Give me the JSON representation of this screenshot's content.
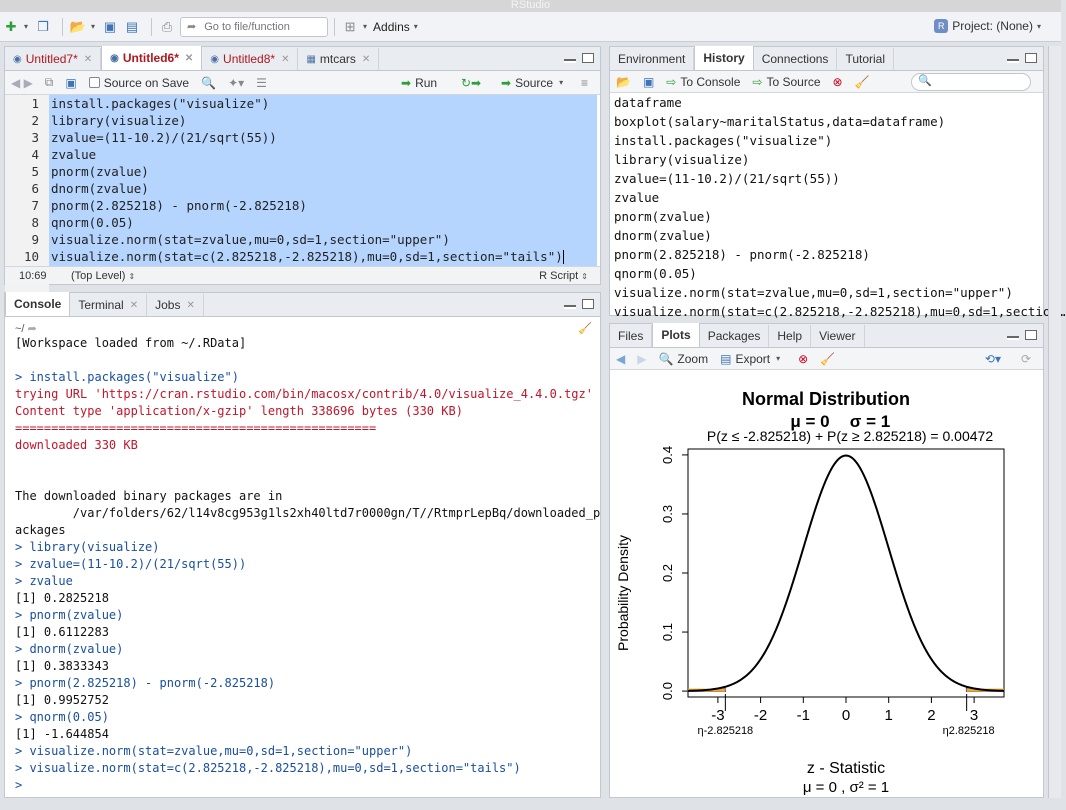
{
  "window": {
    "title": "RStudio"
  },
  "toolbar": {
    "goto_placeholder": "Go to file/function",
    "addins_label": "Addins",
    "project_label": "Project: (None)"
  },
  "source": {
    "tabs": [
      {
        "label": "Untitled7*",
        "active": false,
        "unsaved": true
      },
      {
        "label": "Untitled6*",
        "active": true,
        "unsaved": true
      },
      {
        "label": "Untitled8*",
        "active": false,
        "unsaved": true
      },
      {
        "label": "mtcars",
        "active": false,
        "unsaved": false
      }
    ],
    "source_on_save_label": "Source on Save",
    "run_label": "Run",
    "source_label": "Source",
    "lines": [
      "install.packages(\"visualize\")",
      "library(visualize)",
      "zvalue=(11-10.2)/(21/sqrt(55))",
      "zvalue",
      "pnorm(zvalue)",
      "dnorm(zvalue)",
      "pnorm(2.825218) - pnorm(-2.825218)",
      "qnorm(0.05)",
      "visualize.norm(stat=zvalue,mu=0,sd=1,section=\"upper\")",
      "visualize.norm(stat=c(2.825218,-2.825218),mu=0,sd=1,section=\"tails\")"
    ],
    "status_position": "10:69",
    "status_scope": "(Top Level)",
    "status_type": "R Script"
  },
  "console": {
    "tabs": [
      "Console",
      "Terminal",
      "Jobs"
    ],
    "path": "~/",
    "lines": [
      {
        "kind": "out",
        "text": "[Workspace loaded from ~/.RData]"
      },
      {
        "kind": "out",
        "text": ""
      },
      {
        "kind": "cmd",
        "text": "> install.packages(\"visualize\")"
      },
      {
        "kind": "err",
        "text": "trying URL 'https://cran.rstudio.com/bin/macosx/contrib/4.0/visualize_4.4.0.tgz'"
      },
      {
        "kind": "err",
        "text": "Content type 'application/x-gzip' length 338696 bytes (330 KB)"
      },
      {
        "kind": "err",
        "text": "=================================================="
      },
      {
        "kind": "err",
        "text": "downloaded 330 KB"
      },
      {
        "kind": "out",
        "text": ""
      },
      {
        "kind": "out",
        "text": ""
      },
      {
        "kind": "out",
        "text": "The downloaded binary packages are in"
      },
      {
        "kind": "out",
        "text": "\t/var/folders/62/l14v8cg953g1ls2xh40ltd7r0000gn/T//RtmprLepBq/downloaded_p"
      },
      {
        "kind": "out",
        "text": "ackages"
      },
      {
        "kind": "cmd",
        "text": "> library(visualize)"
      },
      {
        "kind": "cmd",
        "text": "> zvalue=(11-10.2)/(21/sqrt(55))"
      },
      {
        "kind": "cmd",
        "text": "> zvalue"
      },
      {
        "kind": "out",
        "text": "[1] 0.2825218"
      },
      {
        "kind": "cmd",
        "text": "> pnorm(zvalue)"
      },
      {
        "kind": "out",
        "text": "[1] 0.6112283"
      },
      {
        "kind": "cmd",
        "text": "> dnorm(zvalue)"
      },
      {
        "kind": "out",
        "text": "[1] 0.3833343"
      },
      {
        "kind": "cmd",
        "text": "> pnorm(2.825218) - pnorm(-2.825218)"
      },
      {
        "kind": "out",
        "text": "[1] 0.9952752"
      },
      {
        "kind": "cmd",
        "text": "> qnorm(0.05)"
      },
      {
        "kind": "out",
        "text": "[1] -1.644854"
      },
      {
        "kind": "cmd",
        "text": "> visualize.norm(stat=zvalue,mu=0,sd=1,section=\"upper\")"
      },
      {
        "kind": "cmd",
        "text": "> visualize.norm(stat=c(2.825218,-2.825218),mu=0,sd=1,section=\"tails\")"
      },
      {
        "kind": "cmd",
        "text": "> "
      }
    ]
  },
  "environment": {
    "tabs": [
      "Environment",
      "History",
      "Connections",
      "Tutorial"
    ],
    "active_tab": "History",
    "to_console_label": "To Console",
    "to_source_label": "To Source",
    "history": [
      "dataframe",
      "boxplot(salary~maritalStatus,data=dataframe)",
      "install.packages(\"visualize\")",
      "library(visualize)",
      "zvalue=(11-10.2)/(21/sqrt(55))",
      "zvalue",
      "pnorm(zvalue)",
      "dnorm(zvalue)",
      "pnorm(2.825218) - pnorm(-2.825218)",
      "qnorm(0.05)",
      "visualize.norm(stat=zvalue,mu=0,sd=1,section=\"upper\")",
      "visualize.norm(stat=c(2.825218,-2.825218),mu=0,sd=1,section…"
    ]
  },
  "files": {
    "tabs": [
      "Files",
      "Plots",
      "Packages",
      "Help",
      "Viewer"
    ],
    "active_tab": "Plots",
    "zoom_label": "Zoom",
    "export_label": "Export"
  },
  "chart_data": {
    "type": "line",
    "title": "Normal Distribution",
    "subtitle_mu": "μ = 0",
    "subtitle_sigma": "σ = 1",
    "prob_text": "P(z ≤ -2.825218) + P(z ≥ 2.825218) = 0.00472",
    "xlabel": "z - Statistic",
    "xlabel2": "μ = 0 , σ² = 1",
    "ylabel": "Probability Density",
    "xlim": [
      -3.7,
      3.7
    ],
    "ylim": [
      -0.01,
      0.41
    ],
    "xticks": [
      "-3",
      "-2",
      "-1",
      "0",
      "1",
      "2",
      "3"
    ],
    "xtick_values": [
      -3,
      -2,
      -1,
      0,
      1,
      2,
      3
    ],
    "yticks": [
      "0.0",
      "0.1",
      "0.2",
      "0.3",
      "0.4"
    ],
    "ytick_values": [
      0,
      0.1,
      0.2,
      0.3,
      0.4
    ],
    "stat_lower": -2.825218,
    "stat_upper": 2.825218,
    "stat_lower_label": "η-2.825218",
    "stat_upper_label": "η2.825218",
    "curve_color": "#000000",
    "tail_color": "#f5a623",
    "tail_edge_color": "#1f3fb0"
  }
}
